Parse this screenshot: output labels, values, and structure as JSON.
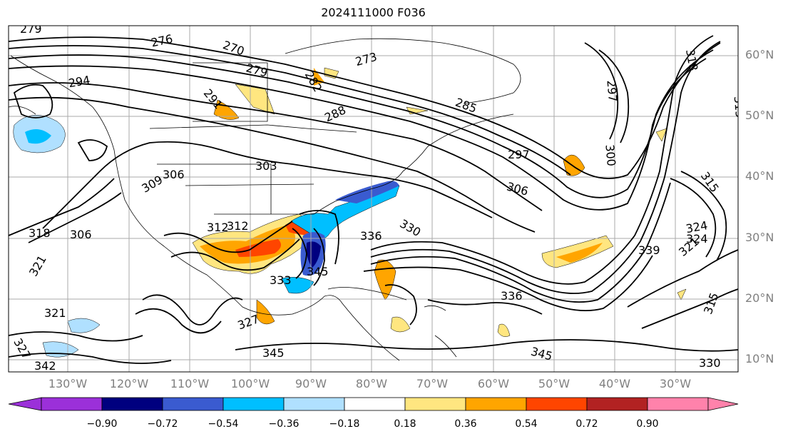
{
  "title": "2024111000 F036",
  "lat_labels": [
    "60°N",
    "50°N",
    "40°N",
    "30°N",
    "20°N",
    "10°N"
  ],
  "lon_labels": [
    "130°W",
    "120°W",
    "110°W",
    "100°W",
    "90°W",
    "80°W",
    "70°W",
    "60°W",
    "50°W",
    "40°W",
    "30°W"
  ],
  "colorbar": {
    "ticks": [
      "−0.90",
      "−0.72",
      "−0.54",
      "−0.36",
      "−0.18",
      "0.18",
      "0.36",
      "0.54",
      "0.72",
      "0.90"
    ],
    "colors": [
      "#9b30d9",
      "#00007f",
      "#3a5bd0",
      "#00bfff",
      "#b0e0ff",
      "#ffffff",
      "#ffe680",
      "#ffa500",
      "#ff4500",
      "#b22222",
      "#ff82ab"
    ]
  },
  "contour_labels": [
    "279",
    "276",
    "270",
    "273",
    "279",
    "294",
    "282",
    "291",
    "288",
    "285",
    "297",
    "303",
    "309",
    "306",
    "300",
    "297",
    "306",
    "318",
    "306",
    "312",
    "324",
    "315",
    "318",
    "315",
    "321",
    "336",
    "339",
    "321",
    "327",
    "345",
    "342",
    "345",
    "330",
    "321",
    "336",
    "324",
    "345",
    "330",
    "315",
    "312",
    "333",
    "327"
  ]
}
